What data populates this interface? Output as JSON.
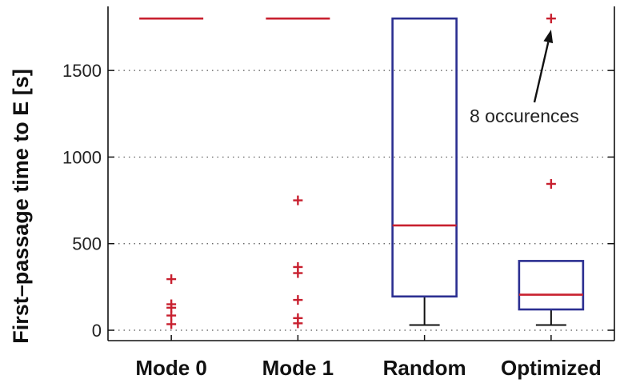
{
  "chart_data": {
    "type": "box",
    "categories": [
      "Mode 0",
      "Mode 1",
      "Random",
      "Optimized"
    ],
    "ylabel": "First–passage time to E [s]",
    "xlabel": "",
    "ylim": [
      -60,
      1870
    ],
    "yticks": [
      0,
      500,
      1000,
      1500
    ],
    "grid": "horizontal dotted",
    "boxes": [
      {
        "category": "Mode 0",
        "median": 1800,
        "q1": 1800,
        "q3": 1800,
        "whisker_low": 1800,
        "whisker_high": 1800,
        "outliers": [
          295,
          150,
          130,
          85,
          35
        ]
      },
      {
        "category": "Mode 1",
        "median": 1800,
        "q1": 1800,
        "q3": 1800,
        "whisker_low": 1800,
        "whisker_high": 1800,
        "outliers": [
          750,
          365,
          330,
          175,
          70,
          40
        ]
      },
      {
        "category": "Random",
        "median": 605,
        "q1": 195,
        "q3": 1800,
        "whisker_low": 30,
        "whisker_high": 1800,
        "outliers": []
      },
      {
        "category": "Optimized",
        "median": 205,
        "q1": 120,
        "q3": 400,
        "whisker_low": 30,
        "whisker_high": 400,
        "outliers": [
          1800,
          845
        ]
      }
    ],
    "annotation": {
      "text": "8 occurences",
      "target_category": "Optimized",
      "target_value": 1800
    },
    "colors": {
      "box": "#2b2f91",
      "median": "#c8202f",
      "outlier": "#c8202f",
      "whisker": "#111111",
      "axis": "#111111",
      "grid": "#555555"
    }
  }
}
